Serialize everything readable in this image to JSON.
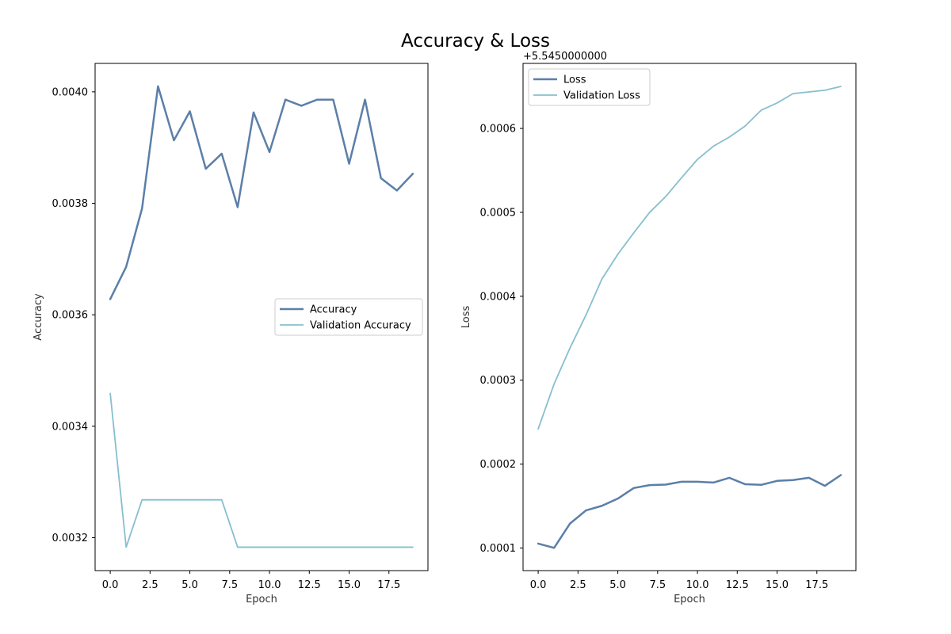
{
  "figure": {
    "title": "Accuracy & Loss"
  },
  "chart_data": [
    {
      "type": "line",
      "xlabel": "Epoch",
      "ylabel": "Accuracy",
      "xlim": [
        -0.95,
        19.95
      ],
      "ylim": [
        0.003141,
        0.004051
      ],
      "xticks": [
        0.0,
        2.5,
        5.0,
        7.5,
        10.0,
        12.5,
        15.0,
        17.5
      ],
      "xtick_labels": [
        "0.0",
        "2.5",
        "5.0",
        "7.5",
        "10.0",
        "12.5",
        "15.0",
        "17.5"
      ],
      "yticks": [
        0.0032,
        0.0034,
        0.0036,
        0.0038,
        0.004
      ],
      "ytick_labels": [
        "0.0032",
        "0.0034",
        "0.0036",
        "0.0038",
        "0.0040"
      ],
      "legend_position": "center-right",
      "x": [
        0,
        1,
        2,
        3,
        4,
        5,
        6,
        7,
        8,
        9,
        10,
        11,
        12,
        13,
        14,
        15,
        16,
        17,
        18,
        19
      ],
      "series": [
        {
          "name": "Accuracy",
          "color": "#5b7fa8",
          "values": [
            0.003628,
            0.003686,
            0.003791,
            0.00401,
            0.003913,
            0.003965,
            0.003862,
            0.003889,
            0.003793,
            0.003963,
            0.003892,
            0.003986,
            0.003975,
            0.003986,
            0.003986,
            0.003871,
            0.003986,
            0.003845,
            0.003823,
            0.003853
          ]
        },
        {
          "name": "Validation Accuracy",
          "color": "#86bfcf",
          "values": [
            0.003459,
            0.003183,
            0.003268,
            0.003268,
            0.003268,
            0.003268,
            0.003268,
            0.003268,
            0.003183,
            0.003183,
            0.003183,
            0.003183,
            0.003183,
            0.003183,
            0.003183,
            0.003183,
            0.003183,
            0.003183,
            0.003183,
            0.003183
          ]
        }
      ]
    },
    {
      "type": "line",
      "xlabel": "Epoch",
      "ylabel": "Loss",
      "offset_text": "+5.5450000000",
      "xlim": [
        -0.95,
        19.95
      ],
      "ylim": [
        7.31e-05,
        0.0006775
      ],
      "xticks": [
        0.0,
        2.5,
        5.0,
        7.5,
        10.0,
        12.5,
        15.0,
        17.5
      ],
      "xtick_labels": [
        "0.0",
        "2.5",
        "5.0",
        "7.5",
        "10.0",
        "12.5",
        "15.0",
        "17.5"
      ],
      "yticks": [
        0.0001,
        0.0002,
        0.0003,
        0.0004,
        0.0005,
        0.0006
      ],
      "ytick_labels": [
        "0.0001",
        "0.0002",
        "0.0003",
        "0.0004",
        "0.0005",
        "0.0006"
      ],
      "legend_position": "upper-left",
      "x": [
        0,
        1,
        2,
        3,
        4,
        5,
        6,
        7,
        8,
        9,
        10,
        11,
        12,
        13,
        14,
        15,
        16,
        17,
        18,
        19
      ],
      "series": [
        {
          "name": "Loss",
          "color": "#5b7fa8",
          "values": [
            0.0001053,
            0.0001002,
            0.0001292,
            0.0001448,
            0.0001503,
            0.0001589,
            0.0001715,
            0.000175,
            0.0001756,
            0.000179,
            0.000179,
            0.000178,
            0.0001837,
            0.000176,
            0.0001753,
            0.00018,
            0.000181,
            0.0001837,
            0.0001741,
            0.0001869
          ]
        },
        {
          "name": "Validation Loss",
          "color": "#86bfcf",
          "values": [
            0.000242,
            0.0002955,
            0.0003385,
            0.0003776,
            0.0004205,
            0.00045,
            0.0004756,
            0.0005,
            0.0005187,
            0.0005412,
            0.0005631,
            0.0005788,
            0.0005897,
            0.0006029,
            0.0006217,
            0.0006303,
            0.0006415,
            0.0006435,
            0.0006455,
            0.00065
          ]
        }
      ]
    }
  ]
}
